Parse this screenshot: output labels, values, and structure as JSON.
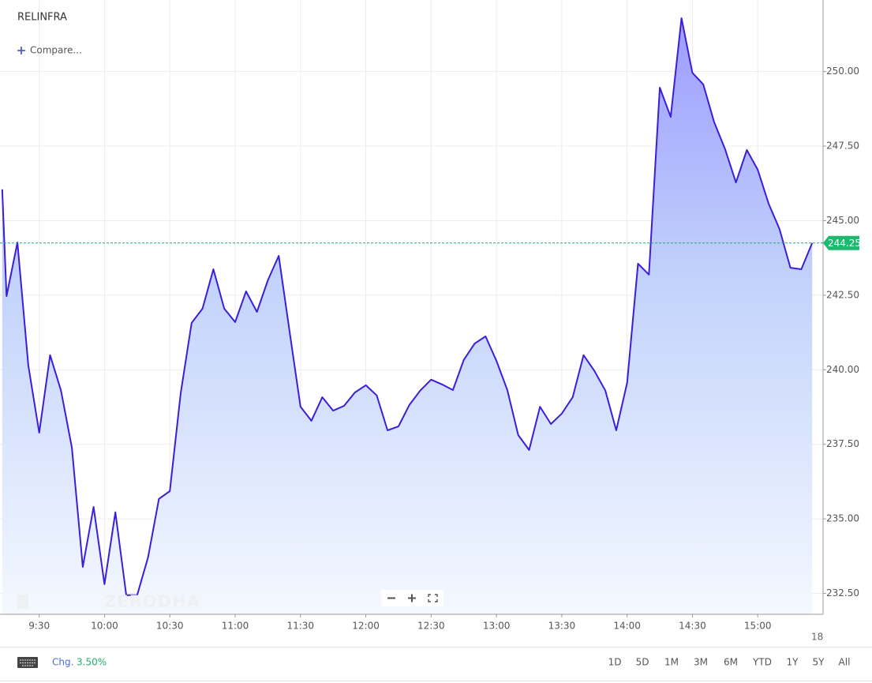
{
  "chart_data": {
    "type": "area",
    "title": "RELINFRA",
    "compare_label": "Compare...",
    "watermark": "ZERODHA",
    "color": "#3b1fd8",
    "x": [
      "9:13",
      "9:15",
      "9:20",
      "9:25",
      "9:30",
      "9:35",
      "9:40",
      "9:45",
      "9:50",
      "9:55",
      "10:00",
      "10:05",
      "10:10",
      "10:15",
      "10:20",
      "10:25",
      "10:30",
      "10:35",
      "10:40",
      "10:45",
      "10:50",
      "10:55",
      "11:00",
      "11:05",
      "11:10",
      "11:15",
      "11:20",
      "11:25",
      "11:30",
      "11:35",
      "11:40",
      "11:45",
      "11:50",
      "11:55",
      "12:00",
      "12:05",
      "12:10",
      "12:15",
      "12:20",
      "12:25",
      "12:30",
      "12:35",
      "12:40",
      "12:45",
      "12:50",
      "12:55",
      "13:00",
      "13:05",
      "13:10",
      "13:15",
      "13:20",
      "13:25",
      "13:30",
      "13:35",
      "13:40",
      "13:45",
      "13:50",
      "13:55",
      "14:00",
      "14:05",
      "14:10",
      "14:15",
      "14:20",
      "14:25",
      "14:30",
      "14:35",
      "14:40",
      "14:45",
      "14:50",
      "14:55",
      "15:00",
      "15:05",
      "15:10",
      "15:15",
      "15:20",
      "15:25"
    ],
    "values": [
      246.05,
      242.47,
      244.27,
      240.14,
      237.89,
      240.49,
      239.3,
      237.39,
      233.39,
      235.4,
      232.81,
      235.22,
      232.44,
      232.44,
      233.71,
      235.67,
      235.93,
      239.22,
      241.57,
      242.05,
      243.37,
      242.05,
      241.6,
      242.63,
      241.94,
      243.0,
      243.82,
      241.28,
      238.76,
      238.29,
      239.08,
      238.63,
      238.79,
      239.24,
      239.48,
      239.14,
      237.97,
      238.1,
      238.82,
      239.3,
      239.67,
      239.51,
      239.32,
      240.33,
      240.88,
      241.12,
      240.3,
      239.32,
      237.81,
      237.31,
      238.76,
      238.18,
      238.53,
      239.08,
      240.49,
      239.96,
      239.3,
      237.97,
      239.56,
      243.56,
      243.19,
      249.46,
      248.48,
      251.79,
      249.96,
      249.57,
      248.3,
      247.4,
      246.28,
      247.37,
      246.71,
      245.57,
      244.72,
      243.42,
      243.37,
      244.25
    ],
    "xlim": [
      "9:12",
      "15:30"
    ],
    "xticks": [
      "9:30",
      "10:00",
      "10:30",
      "11:00",
      "11:30",
      "12:00",
      "12:30",
      "13:00",
      "13:30",
      "14:00",
      "14:30",
      "15:00"
    ],
    "next_day_label": "18",
    "ylim": [
      231.8,
      252.4
    ],
    "yticks": [
      {
        "value": 232.5,
        "label": "232.50"
      },
      {
        "value": 235,
        "label": "235.00"
      },
      {
        "value": 237.5,
        "label": "237.50"
      },
      {
        "value": 240,
        "label": "240.00"
      },
      {
        "value": 242.5,
        "label": "242.50"
      },
      {
        "value": 245,
        "label": "245.00"
      },
      {
        "value": 247.5,
        "label": "247.50"
      },
      {
        "value": 250,
        "label": "250.00"
      }
    ],
    "grid": true,
    "last_price": 244.25,
    "change_label": "Chg.",
    "change": {
      "value": 3.5,
      "label": "3.50%"
    },
    "ranges": [
      "1D",
      "5D",
      "1M",
      "3M",
      "6M",
      "YTD",
      "1Y",
      "5Y",
      "All"
    ]
  }
}
